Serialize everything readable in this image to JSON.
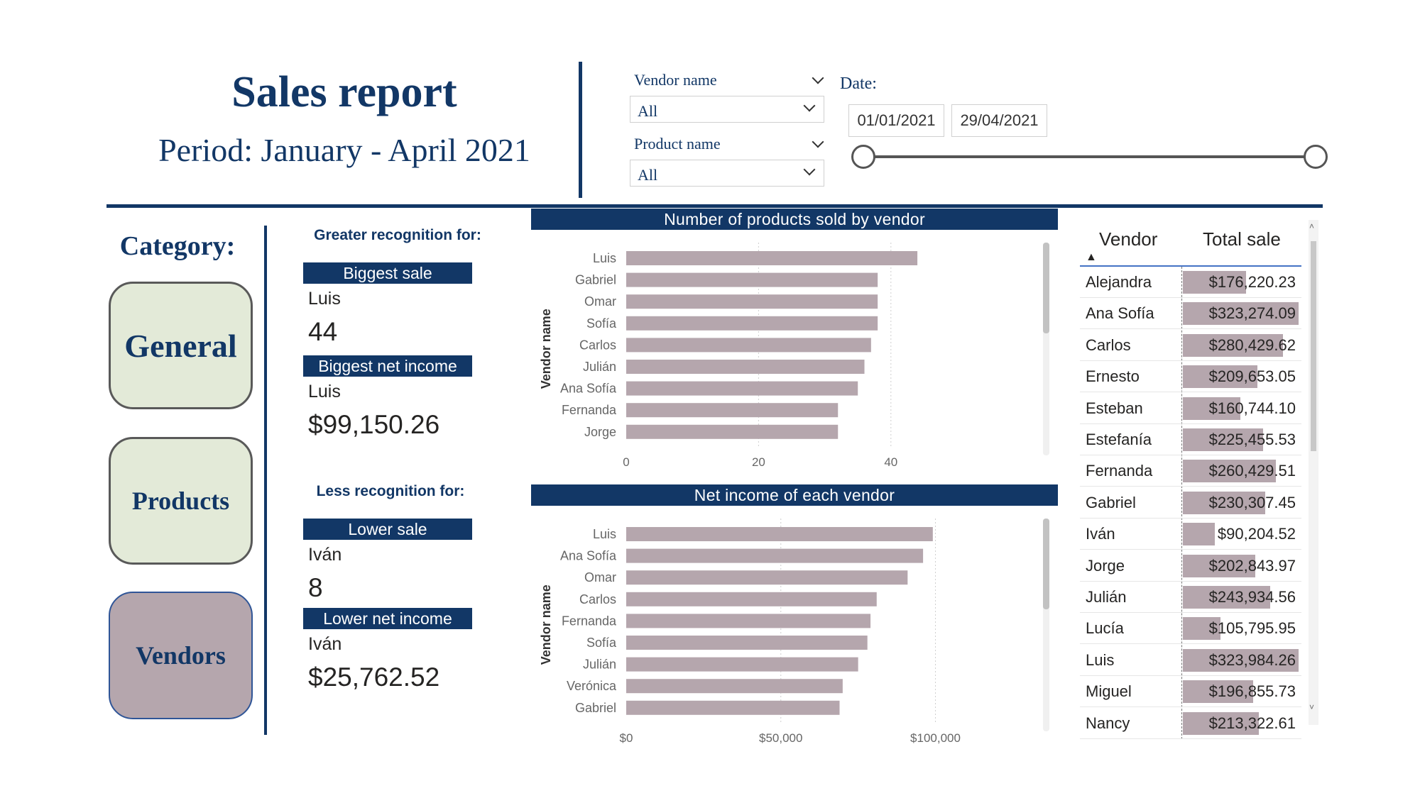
{
  "header": {
    "title": "Sales report",
    "subtitle": "Period: January - April 2021"
  },
  "filters": {
    "vendor": {
      "label": "Vendor name",
      "value": "All"
    },
    "product": {
      "label": "Product name",
      "value": "All"
    },
    "date": {
      "label": "Date:",
      "start": "01/01/2021",
      "end": "29/04/2021"
    }
  },
  "category": {
    "label": "Category:",
    "buttons": [
      {
        "label": "General",
        "selected": false
      },
      {
        "label": "Products",
        "selected": false
      },
      {
        "label": "Vendors",
        "selected": true
      }
    ]
  },
  "recognition": {
    "greater": {
      "heading": "Greater recognition for:",
      "biggest_sale": {
        "title": "Biggest sale",
        "name": "Luis",
        "value": "44"
      },
      "biggest_income": {
        "title": "Biggest net income",
        "name": "Luis",
        "value": "$99,150.26"
      }
    },
    "less": {
      "heading": "Less recognition for:",
      "lower_sale": {
        "title": "Lower sale",
        "name": "Iván",
        "value": "8"
      },
      "lower_income": {
        "title": "Lower net income",
        "name": "Iván",
        "value": "$25,762.52"
      }
    }
  },
  "chart_data": [
    {
      "type": "bar",
      "orientation": "horizontal",
      "title": "Number of products sold by vendor",
      "ylabel": "Vendor name",
      "xlabel": "",
      "categories": [
        "Luis",
        "Gabriel",
        "Omar",
        "Sofía",
        "Carlos",
        "Julián",
        "Ana Sofía",
        "Fernanda",
        "Jorge"
      ],
      "values": [
        44,
        38,
        38,
        38,
        37,
        36,
        35,
        32,
        32
      ],
      "xlim": [
        0,
        50
      ],
      "xticks": [
        "0",
        "20",
        "40"
      ],
      "grid": true,
      "color": "#b5a6ad"
    },
    {
      "type": "bar",
      "orientation": "horizontal",
      "title": "Net income of each vendor",
      "ylabel": "Vendor name",
      "xlabel": "",
      "categories": [
        "Luis",
        "Ana Sofía",
        "Omar",
        "Carlos",
        "Fernanda",
        "Sofía",
        "Julián",
        "Verónica",
        "Gabriel"
      ],
      "values": [
        99150.26,
        96000,
        91000,
        81000,
        79000,
        78000,
        75000,
        70000,
        69000
      ],
      "xlim": [
        0,
        107000
      ],
      "xticks": [
        "$0",
        "$50,000",
        "$100,000"
      ],
      "grid": true,
      "color": "#b5a6ad"
    }
  ],
  "table": {
    "columns": [
      "Vendor",
      "Total sale"
    ],
    "sort_indicator": "▲",
    "bar_color": "#b5a6ad",
    "max_total": 323984.26,
    "rows": [
      {
        "vendor": "Alejandra",
        "total": "$176,220.23",
        "amount": 176220.23
      },
      {
        "vendor": "Ana Sofía",
        "total": "$323,274.09",
        "amount": 323274.09
      },
      {
        "vendor": "Carlos",
        "total": "$280,429.62",
        "amount": 280429.62
      },
      {
        "vendor": "Ernesto",
        "total": "$209,653.05",
        "amount": 209653.05
      },
      {
        "vendor": "Esteban",
        "total": "$160,744.10",
        "amount": 160744.1
      },
      {
        "vendor": "Estefanía",
        "total": "$225,455.53",
        "amount": 225455.53
      },
      {
        "vendor": "Fernanda",
        "total": "$260,429.51",
        "amount": 260429.51
      },
      {
        "vendor": "Gabriel",
        "total": "$230,307.45",
        "amount": 230307.45
      },
      {
        "vendor": "Iván",
        "total": "$90,204.52",
        "amount": 90204.52
      },
      {
        "vendor": "Jorge",
        "total": "$202,843.97",
        "amount": 202843.97
      },
      {
        "vendor": "Julián",
        "total": "$243,934.56",
        "amount": 243934.56
      },
      {
        "vendor": "Lucía",
        "total": "$105,795.95",
        "amount": 105795.95
      },
      {
        "vendor": "Luis",
        "total": "$323,984.26",
        "amount": 323984.26
      },
      {
        "vendor": "Miguel",
        "total": "$196,855.73",
        "amount": 196855.73
      },
      {
        "vendor": "Nancy",
        "total": "$213,322.61",
        "amount": 213322.61
      }
    ]
  },
  "colors": {
    "accent": "#123766",
    "button_fill": "#e3ead8",
    "selected_fill": "#b5a6ad",
    "bar": "#b5a6ad"
  }
}
